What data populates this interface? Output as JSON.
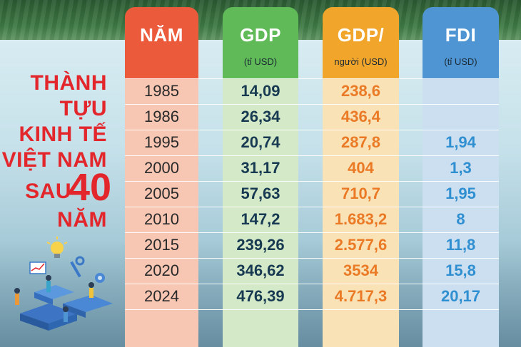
{
  "title_lines": [
    "THÀNH",
    "TỰU",
    "KINH TẾ",
    "VIỆT NAM",
    "SAU",
    "40",
    "NĂM"
  ],
  "headers": {
    "year": {
      "title": "NĂM",
      "unit": ""
    },
    "gdp": {
      "title": "GDP",
      "unit": "(tỉ USD)"
    },
    "gdpp": {
      "title": "GDP/",
      "unit": "người (USD)"
    },
    "fdi": {
      "title": "FDI",
      "unit": "(tỉ USD)"
    }
  },
  "rows": [
    {
      "year": "1985",
      "gdp": "14,09",
      "gdpp": "238,6",
      "fdi": ""
    },
    {
      "year": "1986",
      "gdp": "26,34",
      "gdpp": "436,4",
      "fdi": ""
    },
    {
      "year": "1995",
      "gdp": "20,74",
      "gdpp": "287,8",
      "fdi": "1,94"
    },
    {
      "year": "2000",
      "gdp": "31,17",
      "gdpp": "404",
      "fdi": "1,3"
    },
    {
      "year": "2005",
      "gdp": "57,63",
      "gdpp": "710,7",
      "fdi": "1,95"
    },
    {
      "year": "2010",
      "gdp": "147,2",
      "gdpp": "1.683,2",
      "fdi": "8"
    },
    {
      "year": "2015",
      "gdp": "239,26",
      "gdpp": "2.577,6",
      "fdi": "11,8"
    },
    {
      "year": "2020",
      "gdp": "346,62",
      "gdpp": "3534",
      "fdi": "15,8"
    },
    {
      "year": "2024",
      "gdp": "476,39",
      "gdpp": "4.717,3",
      "fdi": "20,17"
    }
  ],
  "chart_data": {
    "type": "table",
    "columns": [
      "NĂM",
      "GDP (tỉ USD)",
      "GDP/người (USD)",
      "FDI (tỉ USD)"
    ],
    "years": [
      1985,
      1986,
      1995,
      2000,
      2005,
      2010,
      2015,
      2020,
      2024
    ],
    "gdp_billion_usd": [
      14.09,
      26.34,
      20.74,
      31.17,
      57.63,
      147.2,
      239.26,
      346.62,
      476.39
    ],
    "gdp_per_capita_usd": [
      238.6,
      436.4,
      287.8,
      404,
      710.7,
      1683.2,
      2577.6,
      3534,
      4717.3
    ],
    "fdi_billion_usd": [
      null,
      null,
      1.94,
      1.3,
      1.95,
      8,
      11.8,
      15.8,
      20.17
    ]
  },
  "colors": {
    "year_header": "#ec5a3c",
    "year_body": "#f7c7b3",
    "gdp_header": "#5fba57",
    "gdp_body": "#d4e9c7",
    "gdpp_header": "#f2a52b",
    "gdpp_body": "#fae2b7",
    "fdi_header": "#4f95d3",
    "fdi_body": "#cbdff1",
    "title_red": "#e3262b"
  }
}
